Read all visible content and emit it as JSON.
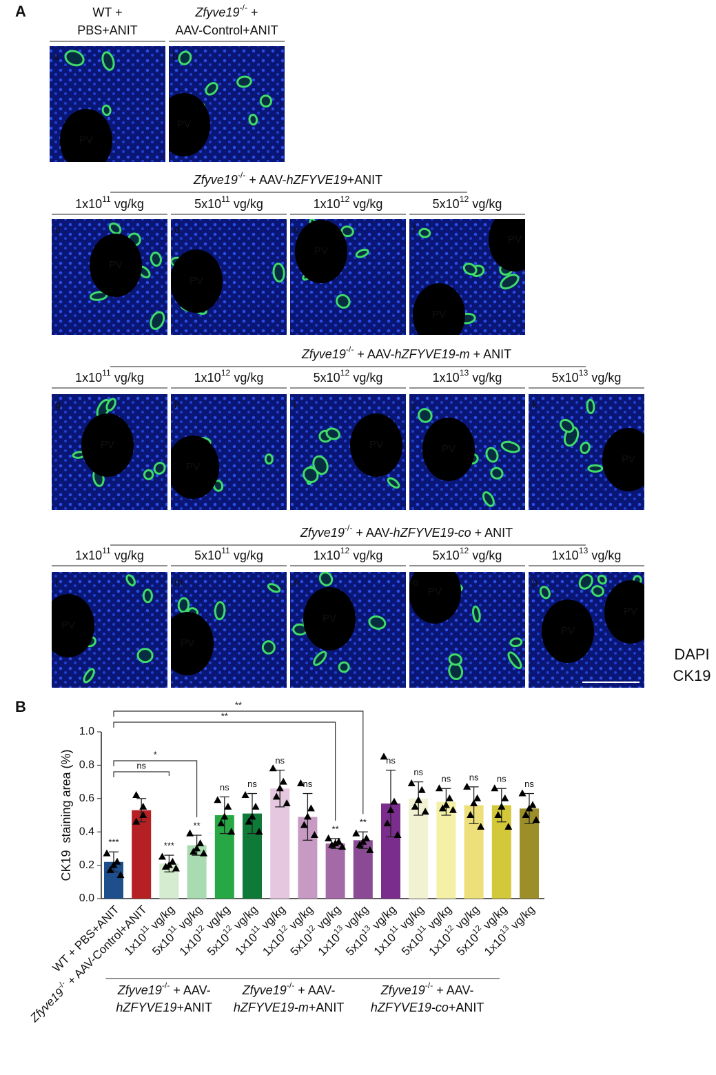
{
  "panel_a": {
    "label": "A",
    "rows": [
      {
        "headers": [
          [
            [
              "WT +"
            ],
            [
              "PBS+ANIT"
            ]
          ],
          [
            [
              "Zfyve19",
              "-/-",
              " +"
            ],
            [
              "AAV-Control+ANIT"
            ]
          ]
        ],
        "panels": [
          {
            "letter": "a",
            "pv": [
              "PV"
            ]
          },
          {
            "letter": "b",
            "pv": [
              "PV"
            ]
          }
        ]
      },
      {
        "title": [
          "Zfyve19",
          "-/-",
          " + AAV-",
          "hZFYVE19",
          "+ANIT"
        ],
        "headers": [
          [
            [
              "1x10",
              "11",
              " vg/kg"
            ]
          ],
          [
            [
              "5x10",
              "11",
              " vg/kg"
            ]
          ],
          [
            [
              "1x10",
              "12",
              " vg/kg"
            ]
          ],
          [
            [
              "5x10",
              "12",
              " vg/kg"
            ]
          ]
        ],
        "panels": [
          {
            "letter": "c",
            "pv": [
              "PV"
            ]
          },
          {
            "letter": "d",
            "pv": [
              "PV"
            ]
          },
          {
            "letter": "e",
            "pv": [
              "PV"
            ]
          },
          {
            "letter": "f",
            "pv": [
              "PV",
              "PV"
            ]
          }
        ]
      },
      {
        "title": [
          "Zfyve19",
          "-/-",
          " + AAV-",
          "hZFYVE19-m",
          " + ANIT"
        ],
        "headers": [
          [
            [
              "1x10",
              "11",
              " vg/kg"
            ]
          ],
          [
            [
              "1x10",
              "12",
              " vg/kg"
            ]
          ],
          [
            [
              "5x10",
              "12",
              " vg/kg"
            ]
          ],
          [
            [
              "1x10",
              "13",
              " vg/kg"
            ]
          ],
          [
            [
              "5x10",
              "13",
              " vg/kg"
            ]
          ]
        ],
        "panels": [
          {
            "letter": "g",
            "pv": [
              "PV"
            ]
          },
          {
            "letter": "h",
            "pv": [
              "PV"
            ]
          },
          {
            "letter": "i",
            "pv": [
              "PV"
            ]
          },
          {
            "letter": "j",
            "pv": [
              "PV"
            ]
          },
          {
            "letter": "k",
            "pv": [
              "PV"
            ]
          }
        ]
      },
      {
        "title": [
          "Zfyve19",
          "-/-",
          " + AAV-",
          "hZFYVE19-co",
          " + ANIT"
        ],
        "headers": [
          [
            [
              "1x10",
              "11",
              " vg/kg"
            ]
          ],
          [
            [
              "5x10",
              "11",
              " vg/kg"
            ]
          ],
          [
            [
              "1x10",
              "12",
              " vg/kg"
            ]
          ],
          [
            [
              "5x10",
              "12",
              " vg/kg"
            ]
          ],
          [
            [
              "1x10",
              "13",
              " vg/kg"
            ]
          ]
        ],
        "panels": [
          {
            "letter": "l",
            "pv": [
              "PV"
            ]
          },
          {
            "letter": "m",
            "pv": [
              "PV"
            ]
          },
          {
            "letter": "n",
            "pv": [
              "PV"
            ]
          },
          {
            "letter": "o",
            "pv": [
              "PV"
            ]
          },
          {
            "letter": "p",
            "pv": [
              "PV",
              "PV"
            ]
          }
        ]
      }
    ],
    "legend": [
      {
        "name": "DAPI",
        "color": "#1f2fe6"
      },
      {
        "name": "CK19",
        "color": "#2cae4a"
      }
    ]
  },
  "chart_data": {
    "type": "bar",
    "label": "B",
    "ylabel": "CK19  staining area (%)",
    "categories": [
      [
        "WT + PBS+ANIT"
      ],
      [
        "Zfyve19",
        "-/-",
        " + AAV-Control+ANIT"
      ],
      [
        "1x10",
        "11",
        " vg/kg"
      ],
      [
        "5x10",
        "11",
        " vg/kg"
      ],
      [
        "1x10",
        "12",
        " vg/kg"
      ],
      [
        "5x10",
        "12",
        " vg/kg"
      ],
      [
        "1x10",
        "11",
        " vg/kg"
      ],
      [
        "1x10",
        "12",
        " vg/kg"
      ],
      [
        "5x10",
        "12",
        " vg/kg"
      ],
      [
        "1x10",
        "13",
        " vg/kg"
      ],
      [
        "5x10",
        "13",
        " vg/kg"
      ],
      [
        "1x10",
        "11",
        " vg/kg"
      ],
      [
        "5x10",
        "11",
        " vg/kg"
      ],
      [
        "1x10",
        "12",
        " vg/kg"
      ],
      [
        "5x10",
        "12",
        " vg/kg"
      ],
      [
        "1x10",
        "13",
        " vg/kg"
      ]
    ],
    "values": [
      0.22,
      0.53,
      0.21,
      0.32,
      0.5,
      0.51,
      0.66,
      0.49,
      0.33,
      0.35,
      0.57,
      0.6,
      0.58,
      0.56,
      0.56,
      0.54
    ],
    "errors": [
      0.06,
      0.07,
      0.05,
      0.06,
      0.11,
      0.12,
      0.11,
      0.14,
      0.03,
      0.05,
      0.2,
      0.1,
      0.08,
      0.11,
      0.1,
      0.09
    ],
    "points": [
      [
        0.27,
        0.22,
        0.2,
        0.17,
        0.14
      ],
      [
        0.62,
        0.55,
        0.5,
        0.46
      ],
      [
        0.25,
        0.22,
        0.2,
        0.19,
        0.18
      ],
      [
        0.39,
        0.33,
        0.3,
        0.28,
        0.27
      ],
      [
        0.59,
        0.55,
        0.49,
        0.45,
        0.4
      ],
      [
        0.62,
        0.55,
        0.49,
        0.46,
        0.4
      ],
      [
        0.78,
        0.7,
        0.66,
        0.61,
        0.57
      ],
      [
        0.69,
        0.54,
        0.49,
        0.44,
        0.38
      ],
      [
        0.36,
        0.34,
        0.33,
        0.32,
        0.31
      ],
      [
        0.39,
        0.36,
        0.34,
        0.32,
        0.29
      ],
      [
        0.85,
        0.58,
        0.53,
        0.45,
        0.38
      ],
      [
        0.69,
        0.65,
        0.59,
        0.55,
        0.52
      ],
      [
        0.66,
        0.6,
        0.56,
        0.54,
        0.53
      ],
      [
        0.67,
        0.6,
        0.57,
        0.5,
        0.43
      ],
      [
        0.66,
        0.6,
        0.55,
        0.5,
        0.43
      ],
      [
        0.63,
        0.56,
        0.54,
        0.5,
        0.47
      ]
    ],
    "colors": [
      "#1f4e8c",
      "#b52025",
      "#d6ecd0",
      "#a9dbb1",
      "#27a844",
      "#0f7a37",
      "#e5c7e0",
      "#c79ac3",
      "#a46aa7",
      "#8a4b94",
      "#7a2d8c",
      "#f1f2d2",
      "#f4f1a6",
      "#ede07a",
      "#d3c83a",
      "#9c8f2a"
    ],
    "significance": [
      "***",
      null,
      "***",
      "**",
      "ns",
      "ns",
      "ns",
      "ns",
      "**",
      "**",
      "ns",
      "ns",
      "ns",
      "ns",
      "ns",
      "ns"
    ],
    "comparisons": [
      {
        "between": [
          0,
          2
        ],
        "label": "ns"
      },
      {
        "between": [
          0,
          3
        ],
        "label": "*"
      },
      {
        "between": [
          0,
          8
        ],
        "label": "**"
      },
      {
        "between": [
          0,
          9
        ],
        "label": "**"
      }
    ],
    "groups": [
      {
        "lines": [
          [
            "Zfyve19",
            "-/-",
            " + AAV-"
          ],
          [
            "hZFYVE19",
            "+ANIT"
          ]
        ],
        "between": [
          2,
          5
        ]
      },
      {
        "lines": [
          [
            "Zfyve19",
            "-/-",
            " + AAV-"
          ],
          [
            "hZFYVE19-m",
            "+ANIT"
          ]
        ],
        "between": [
          6,
          10
        ]
      },
      {
        "lines": [
          [
            "Zfyve19",
            "-/-",
            " + AAV-"
          ],
          [
            "hZFYVE19-co",
            "+ANIT"
          ]
        ],
        "between": [
          11,
          15
        ]
      }
    ],
    "ylim": [
      0,
      1
    ],
    "yticks": [
      {
        "value": 0,
        "label": "0.0"
      },
      0.2,
      0.4,
      0.6,
      0.8,
      {
        "value": 1,
        "label": "1.0"
      }
    ]
  }
}
